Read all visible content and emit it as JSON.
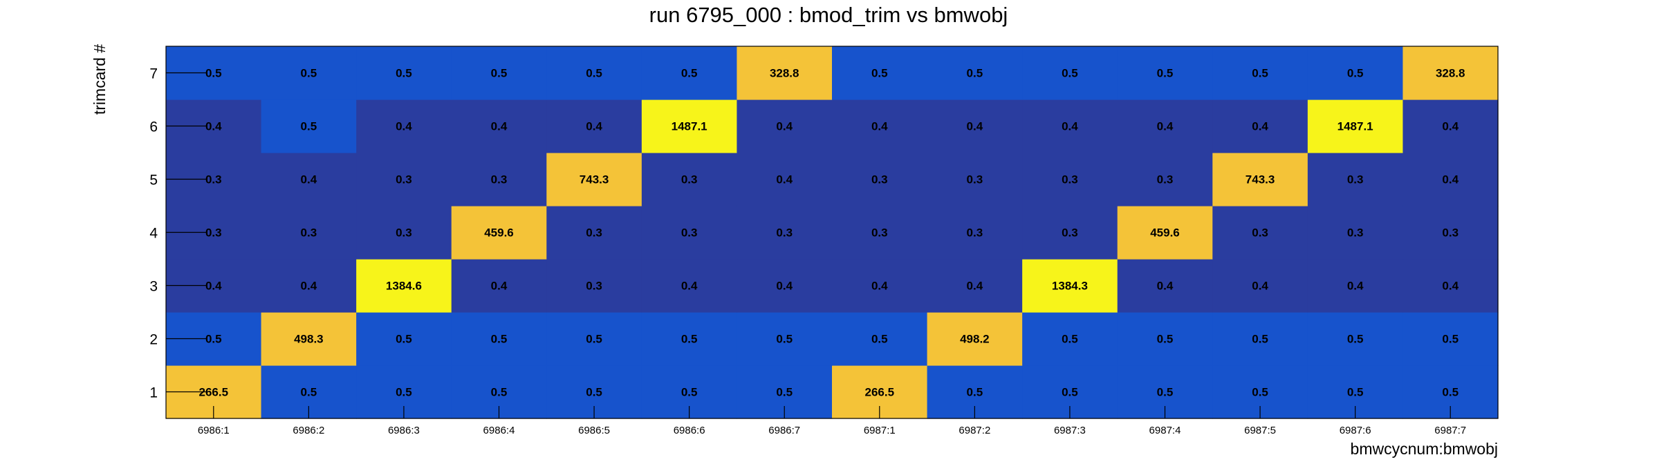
{
  "chart_data": {
    "type": "heatmap",
    "title": "run 6795_000 : bmod_trim vs bmwobj",
    "xlabel": "bmwcycnum:bmwobj",
    "ylabel": "trimcard #",
    "x_categories": [
      "6986:1",
      "6986:2",
      "6986:3",
      "6986:4",
      "6986:5",
      "6986:6",
      "6986:7",
      "6987:1",
      "6987:2",
      "6987:3",
      "6987:4",
      "6987:5",
      "6987:6",
      "6987:7"
    ],
    "y_categories": [
      "1",
      "2",
      "3",
      "4",
      "5",
      "6",
      "7"
    ],
    "values": [
      [
        266.5,
        0.5,
        0.5,
        0.5,
        0.5,
        0.5,
        0.5,
        266.5,
        0.5,
        0.5,
        0.5,
        0.5,
        0.5,
        0.5
      ],
      [
        0.5,
        498.3,
        0.5,
        0.5,
        0.5,
        0.5,
        0.5,
        0.5,
        498.2,
        0.5,
        0.5,
        0.5,
        0.5,
        0.5
      ],
      [
        0.4,
        0.4,
        1384.6,
        0.4,
        0.3,
        0.4,
        0.4,
        0.4,
        0.4,
        1384.3,
        0.4,
        0.4,
        0.4,
        0.4
      ],
      [
        0.3,
        0.3,
        0.3,
        459.6,
        0.3,
        0.3,
        0.3,
        0.3,
        0.3,
        0.3,
        459.6,
        0.3,
        0.3,
        0.3
      ],
      [
        0.3,
        0.4,
        0.3,
        0.3,
        743.3,
        0.3,
        0.4,
        0.3,
        0.3,
        0.3,
        0.3,
        743.3,
        0.3,
        0.4
      ],
      [
        0.4,
        0.5,
        0.4,
        0.4,
        0.4,
        1487.1,
        0.4,
        0.4,
        0.4,
        0.4,
        0.4,
        0.4,
        1487.1,
        0.4
      ],
      [
        0.5,
        0.5,
        0.5,
        0.5,
        0.5,
        0.5,
        328.8,
        0.5,
        0.5,
        0.5,
        0.5,
        0.5,
        0.5,
        328.8
      ]
    ],
    "colors": {
      "dark_blue": "#2a3d9f",
      "blue": "#1753cc",
      "gold": "#f4c338",
      "yellow": "#f7f41a"
    },
    "grid": false,
    "legend": "none"
  }
}
